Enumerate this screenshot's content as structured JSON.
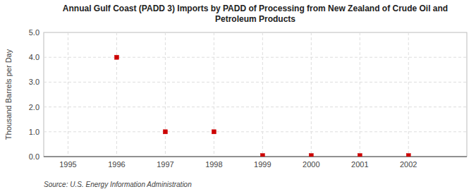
{
  "chart_data": {
    "type": "scatter",
    "title": "Annual Gulf Coast (PADD 3) Imports by PADD of Processing from New Zealand of Crude Oil and\nPetroleum Products",
    "y_label": "Thousand Barrels per Day",
    "annotations": [
      "Source: U.S. Energy Information Administration"
    ],
    "x": [
      1995,
      1996,
      1997,
      1998,
      1999,
      2000,
      2001,
      2002
    ],
    "values": [
      null,
      4.0,
      1.0,
      1.0,
      0.04,
      0.04,
      0.04,
      0.04
    ],
    "color": "#cc0000",
    "marker": "square",
    "xlim": [
      1994.5,
      2003.2
    ],
    "xticks": [
      1995,
      1996,
      1997,
      1998,
      1999,
      2000,
      2001,
      2002
    ],
    "ylim": [
      0.0,
      5.0
    ],
    "yticks": [
      {
        "value": 0.0,
        "label": "0.0"
      },
      {
        "value": 1.0,
        "label": "1.0"
      },
      {
        "value": 2.0,
        "label": "2.0"
      },
      {
        "value": 3.0,
        "label": "3.0"
      },
      {
        "value": 4.0,
        "label": "4.0"
      },
      {
        "value": 5.0,
        "label": "5.0"
      }
    ],
    "grid": true
  }
}
